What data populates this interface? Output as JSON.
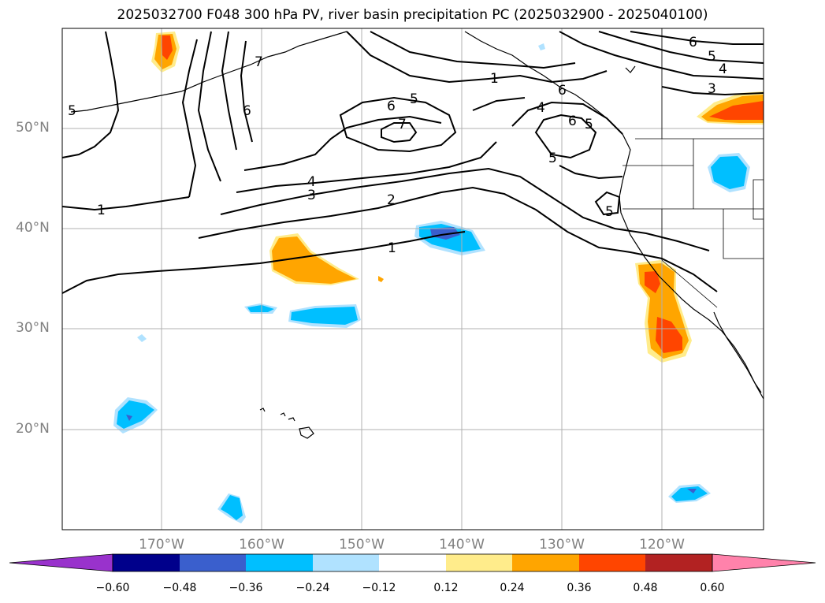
{
  "title": "2025032700 F048 300 hPa PV, river basin precipitation PC (2025032900 - 2025040100)",
  "map": {
    "lat_labels": [
      "50°N",
      "40°N",
      "30°N",
      "20°N"
    ],
    "lon_labels": [
      "170°W",
      "160°W",
      "150°W",
      "140°W",
      "130°W",
      "120°W"
    ],
    "contour_labels": [
      "1",
      "1",
      "1",
      "2",
      "3",
      "4",
      "5",
      "6",
      "7",
      "6",
      "5",
      "7",
      "6",
      "5",
      "4",
      "3",
      "4",
      "5",
      "6",
      "6",
      "5",
      "5"
    ],
    "gridline_color": "#b0b0b0",
    "contour_color": "#000000"
  },
  "colorbar": {
    "ticks": [
      "−0.60",
      "−0.48",
      "−0.36",
      "−0.24",
      "−0.12",
      "0.12",
      "0.24",
      "0.36",
      "0.48",
      "0.60"
    ],
    "colors": [
      "#9932cc",
      "#00008b",
      "#3a5fcd",
      "#00bfff",
      "#b0e2ff",
      "#ffffff",
      "#ffec8b",
      "#ffa500",
      "#ff4500",
      "#b22222",
      "#ff82ab"
    ]
  }
}
